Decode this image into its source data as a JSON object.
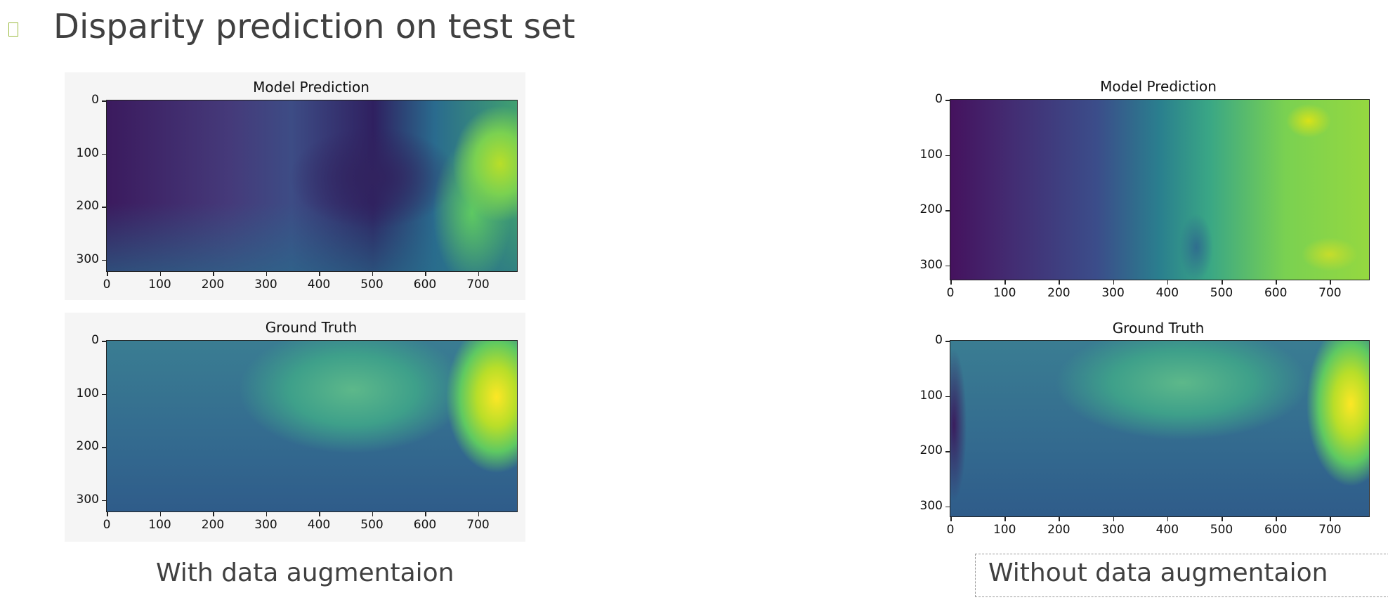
{
  "slide": {
    "title": "Disparity prediction on test set",
    "bullet_icon": "square-bullet-icon"
  },
  "left": {
    "caption": "With data augmentaion",
    "plots": [
      {
        "title": "Model Prediction",
        "yticks": [
          "0",
          "100",
          "200",
          "300"
        ],
        "xticks": [
          "0",
          "100",
          "200",
          "300",
          "400",
          "500",
          "600",
          "700"
        ]
      },
      {
        "title": "Ground Truth",
        "yticks": [
          "0",
          "100",
          "200",
          "300"
        ],
        "xticks": [
          "0",
          "100",
          "200",
          "300",
          "400",
          "500",
          "600",
          "700"
        ]
      }
    ]
  },
  "right": {
    "caption": "Without data augmentaion",
    "plots": [
      {
        "title": "Model Prediction",
        "yticks": [
          "0",
          "100",
          "200",
          "300"
        ],
        "xticks": [
          "0",
          "100",
          "200",
          "300",
          "400",
          "500",
          "600",
          "700"
        ]
      },
      {
        "title": "Ground Truth",
        "yticks": [
          "0",
          "100",
          "200",
          "300"
        ],
        "xticks": [
          "0",
          "100",
          "200",
          "300",
          "400",
          "500",
          "600",
          "700"
        ]
      }
    ]
  },
  "colormap": {
    "low": "#440154",
    "mid_low": "#3b528b",
    "mid": "#21918c",
    "mid_high": "#5ec962",
    "high": "#fde725"
  }
}
